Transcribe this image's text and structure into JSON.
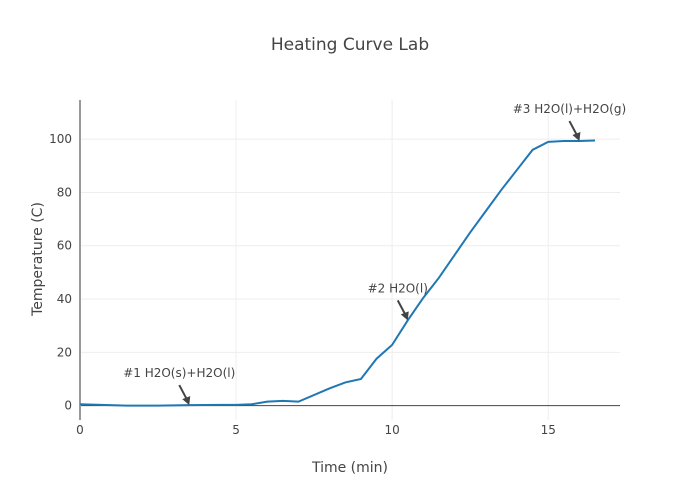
{
  "chart_data": {
    "type": "line",
    "title": "Heating Curve Lab",
    "xlabel": "Time (min)",
    "ylabel": "Temperature (C)",
    "xlim": [
      0,
      17.3
    ],
    "ylim": [
      -5.4,
      114.7
    ],
    "xticks": [
      0,
      5,
      10,
      15
    ],
    "yticks": [
      0,
      20,
      40,
      60,
      80,
      100
    ],
    "grid": true,
    "line_color": "#1f77b4",
    "series": [
      {
        "x": [
          0,
          1.5,
          2.5,
          3.5,
          4.5,
          5,
          5.5,
          6,
          6.5,
          7,
          8,
          8.5,
          9,
          9.5,
          10,
          10.5,
          11,
          11.5,
          12,
          12.5,
          13,
          13.5,
          14,
          14.5,
          15,
          15.5,
          16,
          16.5
        ],
        "y": [
          0.5,
          0,
          0,
          0.2,
          0.3,
          0.3,
          0.5,
          1.5,
          1.8,
          1.5,
          6.5,
          8.7,
          10,
          17.6,
          22.8,
          32,
          40.5,
          48,
          56.5,
          65,
          73,
          81,
          88.5,
          96,
          99,
          99.3,
          99.3,
          99.5
        ]
      }
    ],
    "annotations": [
      {
        "text": "#1 H2O(s)+H2O(l)",
        "x": 3.5,
        "y": 0.2
      },
      {
        "text": "#2 H2O(l)",
        "x": 10.5,
        "y": 32
      },
      {
        "text": "#3 H2O(l)+H2O(g)",
        "x": 16,
        "y": 99.3
      }
    ]
  }
}
